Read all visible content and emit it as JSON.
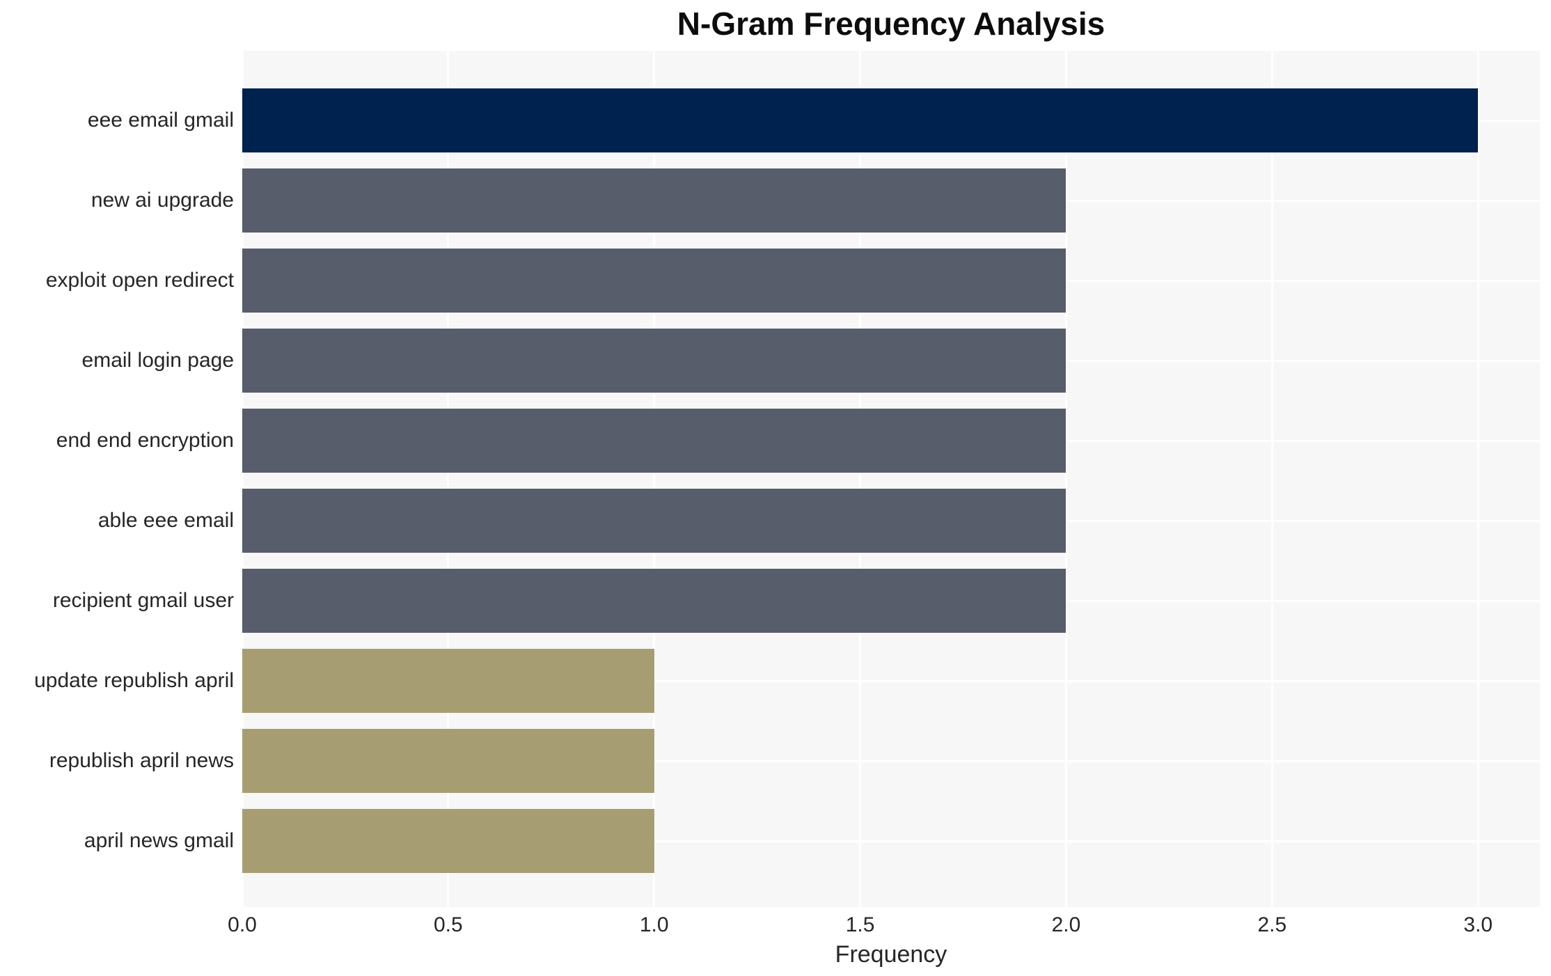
{
  "chart_data": {
    "type": "bar",
    "orientation": "horizontal",
    "title": "N-Gram Frequency Analysis",
    "xlabel": "Frequency",
    "ylabel": "",
    "categories": [
      "eee email gmail",
      "new ai upgrade",
      "exploit open redirect",
      "email login page",
      "end end encryption",
      "able eee email",
      "recipient gmail user",
      "update republish april",
      "republish april news",
      "april news gmail"
    ],
    "values": [
      3.0,
      2.0,
      2.0,
      2.0,
      2.0,
      2.0,
      2.0,
      1.0,
      1.0,
      1.0
    ],
    "bar_colors": [
      "#00224e",
      "#575d6b",
      "#575d6b",
      "#575d6b",
      "#575d6b",
      "#575d6b",
      "#575d6b",
      "#a69d72",
      "#a69d72",
      "#a69d72"
    ],
    "x_ticks": [
      "0.0",
      "0.5",
      "1.0",
      "1.5",
      "2.0",
      "2.5",
      "3.0"
    ],
    "xlim": [
      0,
      3.15
    ],
    "grid": true,
    "legend": "none",
    "plot_background": "#f7f7f7",
    "grid_color": "#ffffff",
    "text_color": "#262626"
  }
}
